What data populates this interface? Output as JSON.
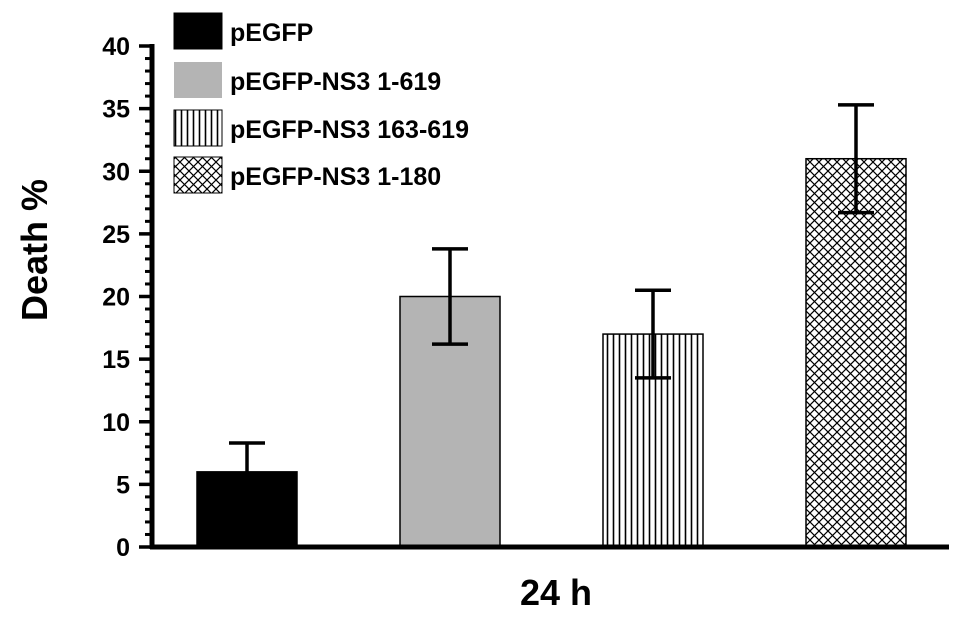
{
  "chart_data": {
    "type": "bar",
    "xlabel": "24 h",
    "ylabel": "Death %",
    "ylim": [
      0,
      40
    ],
    "yticks": [
      "0",
      "5",
      "10",
      "15",
      "20",
      "25",
      "30",
      "35",
      "40"
    ],
    "yminor_step": 1,
    "grid": false,
    "legend_position": "top-left",
    "series": [
      {
        "name": "pEGFP",
        "value": 6,
        "error": 2.3,
        "fill": "solid",
        "color": "#000000"
      },
      {
        "name": "pEGFP-NS3 1-619",
        "value": 20,
        "error": 3.8,
        "fill": "solid",
        "color": "#b4b4b4"
      },
      {
        "name": "pEGFP-NS3 163-619",
        "value": 17,
        "error": 3.5,
        "fill": "vertical-lines",
        "color": "#000000"
      },
      {
        "name": "pEGFP-NS3 1-180",
        "value": 31,
        "error": 4.3,
        "fill": "crosshatch",
        "color": "#000000"
      }
    ]
  }
}
